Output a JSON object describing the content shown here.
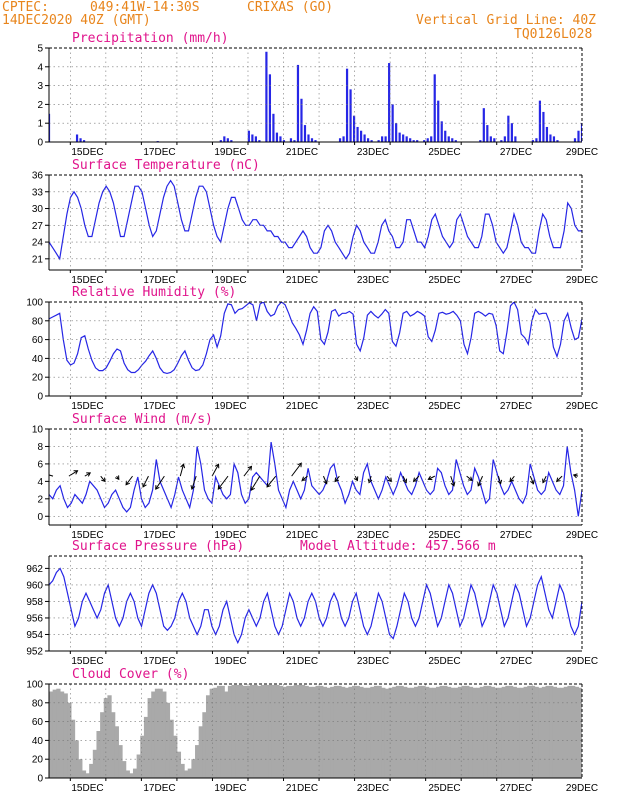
{
  "header": {
    "source": "CPTEC:",
    "coords": "049:41W-14:30S",
    "station": "CRIXAS (GO)",
    "run": "14DEC2020 40Z (GMT)",
    "grid_note": "Vertical Grid Line: 40Z",
    "model_code": "TQ0126L028"
  },
  "model_altitude_label": "Model Altitude: 457.566 m",
  "colors": {
    "header": "#e8851c",
    "titles": "#e0148c",
    "series": "#2626e6",
    "cloud": "#a9a9a9",
    "arrows": "#000000"
  },
  "date_labels": [
    "15DEC",
    "17DEC",
    "19DEC",
    "21DEC",
    "23DEC",
    "25DEC",
    "27DEC",
    "29DEC"
  ],
  "chart_data": [
    {
      "type": "bar",
      "title": "Precipitation (mm/h)",
      "ylim": [
        0,
        5
      ],
      "yticks": [
        0,
        1,
        2,
        3,
        4,
        5
      ],
      "x_start": "14DEC2020",
      "x_end": "29DEC2020",
      "values": [
        1.5,
        0,
        0,
        0,
        0,
        0,
        0,
        0,
        0.4,
        0.2,
        0.1,
        0,
        0,
        0,
        0,
        0,
        0,
        0,
        0,
        0,
        0,
        0,
        0,
        0,
        0,
        0,
        0,
        0,
        0,
        0,
        0,
        0.05,
        0,
        0,
        0,
        0,
        0,
        0,
        0,
        0,
        0,
        0,
        0,
        0,
        0,
        0,
        0,
        0,
        0,
        0.1,
        0.3,
        0.2,
        0.1,
        0,
        0,
        0,
        0,
        0.6,
        0.4,
        0.3,
        0.1,
        0,
        4.8,
        3.6,
        1.5,
        0.5,
        0.3,
        0.1,
        0,
        0.2,
        0.1,
        4.1,
        2.3,
        0.9,
        0.4,
        0.2,
        0.1,
        0,
        0,
        0,
        0,
        0,
        0,
        0.2,
        0.3,
        3.9,
        2.8,
        1.4,
        0.8,
        0.6,
        0.4,
        0.2,
        0.1,
        0,
        0.1,
        0.3,
        0.3,
        4.2,
        2.0,
        1.0,
        0.5,
        0.4,
        0.3,
        0.2,
        0.1,
        0.1,
        0,
        0.1,
        0.2,
        0.3,
        3.6,
        2.2,
        1.1,
        0.6,
        0.3,
        0.2,
        0.1,
        0,
        0,
        0,
        0,
        0,
        0,
        0.1,
        1.8,
        0.9,
        0.3,
        0.2,
        0,
        0.1,
        0.3,
        1.4,
        1.0,
        0.3,
        0,
        0,
        0,
        0,
        0.1,
        0.2,
        2.2,
        1.6,
        0.8,
        0.4,
        0.3,
        0.1,
        0,
        0,
        0,
        0,
        0.2,
        0.6,
        1.0
      ]
    },
    {
      "type": "line",
      "title": "Surface Temperature (nC)",
      "ylim": [
        19,
        36
      ],
      "yticks": [
        21,
        24,
        27,
        30,
        33,
        36
      ],
      "x_start": "14DEC2020",
      "x_end": "29DEC2020",
      "values": [
        24,
        23,
        22,
        21,
        25,
        29,
        32,
        33,
        32,
        30,
        27,
        25,
        25,
        28,
        31,
        33,
        34,
        33,
        31,
        28,
        25,
        25,
        28,
        31,
        34,
        34,
        33,
        30,
        27,
        25,
        26,
        29,
        32,
        34,
        35,
        34,
        31,
        28,
        26,
        26,
        29,
        32,
        34,
        34,
        33,
        30,
        27,
        25,
        24,
        27,
        30,
        32,
        32,
        30,
        28,
        27,
        27,
        28,
        28,
        27,
        27,
        26,
        26,
        25,
        25,
        24,
        24,
        23,
        23,
        24,
        25,
        26,
        25,
        23,
        22,
        22,
        23,
        26,
        27,
        26,
        24,
        23,
        22,
        21,
        22,
        25,
        27,
        26,
        24,
        23,
        22,
        22,
        24,
        27,
        28,
        26,
        25,
        23,
        23,
        24,
        28,
        28,
        26,
        24,
        24,
        23,
        25,
        28,
        29,
        27,
        25,
        24,
        23,
        24,
        28,
        29,
        27,
        25,
        24,
        23,
        23,
        25,
        29,
        29,
        27,
        24,
        23,
        22,
        23,
        26,
        29,
        27,
        24,
        23,
        23,
        22,
        22,
        26,
        29,
        28,
        25,
        23,
        23,
        23,
        26,
        31,
        30,
        27,
        26,
        26
      ]
    },
    {
      "type": "line",
      "title": "Relative Humidity (%)",
      "ylim": [
        0,
        100
      ],
      "yticks": [
        0,
        20,
        40,
        60,
        80,
        100
      ],
      "x_start": "14DEC2020",
      "x_end": "29DEC2020",
      "values": [
        82,
        84,
        86,
        88,
        60,
        38,
        33,
        35,
        45,
        62,
        64,
        50,
        38,
        30,
        27,
        27,
        30,
        37,
        45,
        50,
        48,
        35,
        28,
        25,
        25,
        28,
        33,
        37,
        43,
        48,
        40,
        30,
        25,
        24,
        25,
        28,
        35,
        43,
        48,
        38,
        30,
        27,
        28,
        33,
        45,
        60,
        65,
        52,
        64,
        88,
        98,
        97,
        88,
        92,
        93,
        96,
        99,
        97,
        80,
        98,
        100,
        90,
        85,
        87,
        96,
        100,
        97,
        88,
        78,
        72,
        65,
        55,
        70,
        88,
        95,
        90,
        60,
        55,
        68,
        90,
        92,
        85,
        88,
        88,
        90,
        87,
        55,
        48,
        62,
        86,
        90,
        86,
        83,
        87,
        92,
        88,
        58,
        53,
        67,
        88,
        90,
        85,
        87,
        90,
        88,
        85,
        63,
        58,
        70,
        88,
        89,
        87,
        88,
        90,
        86,
        80,
        55,
        45,
        62,
        88,
        90,
        88,
        85,
        88,
        87,
        75,
        48,
        45,
        68,
        96,
        100,
        92,
        66,
        62,
        55,
        80,
        92,
        87,
        88,
        88,
        78,
        52,
        42,
        55,
        80,
        88,
        72,
        60,
        62,
        82
      ]
    },
    {
      "type": "line",
      "title": "Surface Wind (m/s)",
      "ylim": [
        -1,
        10
      ],
      "yticks": [
        0,
        2,
        4,
        6,
        8,
        10
      ],
      "x_start": "14DEC2020",
      "x_end": "29DEC2020",
      "values": [
        2.5,
        2,
        3,
        3.5,
        2,
        1,
        1.5,
        2.5,
        2,
        1.5,
        2.5,
        4,
        3.5,
        3,
        2,
        1,
        1.5,
        2.5,
        3,
        2,
        1,
        0.5,
        1,
        3,
        4.5,
        2,
        1,
        1.5,
        3,
        6.5,
        4,
        3,
        2,
        1,
        2.5,
        4.5,
        3,
        2,
        1,
        3,
        8,
        6,
        3,
        2,
        1.5,
        4.5,
        3.5,
        2.5,
        2,
        2.5,
        6,
        5,
        2.5,
        1.5,
        2,
        4.5,
        5,
        4.5,
        4,
        3.5,
        8.5,
        6,
        3,
        2,
        1,
        3,
        4,
        3,
        2,
        3,
        5.5,
        3.5,
        3,
        2.5,
        3,
        4,
        5.5,
        6,
        4,
        3,
        1.5,
        2.5,
        4,
        3,
        2.5,
        5,
        6,
        4,
        3,
        2,
        3,
        4.5,
        3.5,
        2.5,
        3.5,
        5,
        4,
        3,
        2.5,
        3.5,
        5,
        4,
        3,
        2.5,
        3,
        5.5,
        5,
        3.5,
        2.5,
        3,
        6.5,
        5,
        3.5,
        2.5,
        3,
        5.5,
        4.5,
        3,
        1.5,
        2,
        6.5,
        5,
        3.5,
        2.5,
        3,
        4,
        3,
        2,
        1.5,
        2.5,
        6,
        4.5,
        3,
        2.5,
        3,
        5,
        4,
        3,
        2.5,
        3.5,
        8,
        5,
        3,
        0,
        3
      ],
      "wind_vectors": [
        {
          "dx": -1,
          "dy": -0.3
        },
        {
          "dx": 0.8,
          "dy": -0.5
        },
        {
          "dx": 0.5,
          "dy": -0.3
        },
        {
          "dx": 0.4,
          "dy": 0.5
        },
        {
          "dx": 0.2,
          "dy": 0.3
        },
        {
          "dx": -0.6,
          "dy": 0.8
        },
        {
          "dx": -0.5,
          "dy": 1
        },
        {
          "dx": -0.8,
          "dy": 1.2
        },
        {
          "dx": 0.3,
          "dy": -1.1
        },
        {
          "dx": -0.4,
          "dy": 1.2
        },
        {
          "dx": 0.6,
          "dy": -1.1
        },
        {
          "dx": -0.9,
          "dy": 1.2
        },
        {
          "dx": 0.7,
          "dy": -0.9
        },
        {
          "dx": -0.8,
          "dy": 1.3
        },
        {
          "dx": -0.8,
          "dy": 1
        },
        {
          "dx": 0.9,
          "dy": -1.2
        },
        {
          "dx": -0.5,
          "dy": 0.4
        },
        {
          "dx": 0.3,
          "dy": 0.7
        },
        {
          "dx": -0.4,
          "dy": 0.5
        },
        {
          "dx": 0.2,
          "dy": 0.4
        },
        {
          "dx": -0.2,
          "dy": 0.6
        },
        {
          "dx": 0.4,
          "dy": 0.5
        },
        {
          "dx": 0.3,
          "dy": 0.6
        },
        {
          "dx": -0.5,
          "dy": 0.5
        },
        {
          "dx": -0.6,
          "dy": 0.3
        },
        {
          "dx": 0.3,
          "dy": 0.9
        },
        {
          "dx": 0.5,
          "dy": 0.4
        },
        {
          "dx": -0.4,
          "dy": 0.9
        },
        {
          "dx": 0.2,
          "dy": 0.7
        },
        {
          "dx": -0.4,
          "dy": 0.5
        },
        {
          "dx": 0.3,
          "dy": 0.7
        },
        {
          "dx": -0.3,
          "dy": 0.6
        },
        {
          "dx": -0.5,
          "dy": 0.5
        },
        {
          "dx": -0.4,
          "dy": -0.1
        }
      ]
    },
    {
      "type": "line",
      "title": "Surface Pressure (hPa)",
      "ylim": [
        952,
        963.5
      ],
      "yticks": [
        952,
        954,
        956,
        958,
        960,
        962
      ],
      "x_start": "14DEC2020",
      "x_end": "29DEC2020",
      "values": [
        960,
        960.5,
        961.5,
        962,
        961,
        959,
        957,
        955,
        956,
        958,
        959,
        958,
        957,
        956,
        957,
        959,
        960,
        958,
        956,
        955,
        956,
        958,
        959,
        958,
        956,
        955,
        957,
        959,
        960,
        959,
        957,
        955,
        954.5,
        955,
        956,
        958,
        959,
        958,
        956,
        955,
        954,
        955,
        957,
        957,
        955,
        954,
        955,
        957,
        958,
        956,
        954,
        953,
        954,
        956,
        957,
        956,
        955,
        956,
        958,
        959,
        957,
        955,
        954,
        955,
        957,
        959,
        958,
        956,
        955,
        956,
        958,
        959,
        958,
        956,
        955,
        956,
        958,
        959,
        958,
        956,
        955,
        956,
        958,
        959,
        957,
        955,
        954,
        955,
        957,
        959,
        958,
        956,
        954,
        953.5,
        955,
        957,
        959,
        958,
        956,
        955,
        956,
        958,
        960,
        959,
        957,
        955,
        956,
        958,
        960,
        959,
        957,
        955,
        956,
        958,
        960,
        959,
        957,
        955,
        956,
        958,
        960,
        959,
        957,
        955,
        956,
        958,
        960,
        959,
        957,
        955,
        956,
        958,
        960,
        961,
        959,
        957,
        956,
        958,
        960,
        959,
        957,
        955,
        954,
        955,
        958
      ]
    },
    {
      "type": "bar",
      "title": "Cloud Cover (%)",
      "ylim": [
        0,
        100
      ],
      "yticks": [
        0,
        20,
        40,
        60,
        80,
        100
      ],
      "x_start": "14DEC2020",
      "x_end": "29DEC2020",
      "values": [
        92,
        94,
        95,
        92,
        90,
        80,
        62,
        40,
        20,
        8,
        5,
        15,
        30,
        50,
        70,
        85,
        88,
        70,
        55,
        35,
        18,
        8,
        5,
        10,
        25,
        45,
        65,
        85,
        92,
        95,
        95,
        92,
        80,
        62,
        45,
        28,
        15,
        8,
        10,
        20,
        35,
        55,
        70,
        88,
        95,
        96,
        98,
        98,
        92,
        98,
        99,
        99,
        99,
        98,
        98,
        99,
        99,
        98,
        99,
        99,
        99,
        99,
        99,
        98,
        97,
        98,
        98,
        99,
        99,
        99,
        98,
        97,
        97,
        98,
        98,
        97,
        96,
        97,
        98,
        98,
        97,
        96,
        97,
        98,
        98,
        97,
        96,
        96,
        97,
        98,
        98,
        96,
        95,
        96,
        97,
        98,
        98,
        97,
        96,
        96,
        97,
        98,
        98,
        97,
        96,
        96,
        97,
        98,
        98,
        97,
        96,
        96,
        97,
        98,
        98,
        97,
        96,
        96,
        97,
        98,
        98,
        97,
        96,
        96,
        97,
        98,
        98,
        97,
        96,
        96,
        97,
        98,
        98,
        97,
        96,
        97,
        98,
        98,
        97,
        96,
        96,
        97,
        98,
        98,
        97,
        96
      ]
    }
  ]
}
